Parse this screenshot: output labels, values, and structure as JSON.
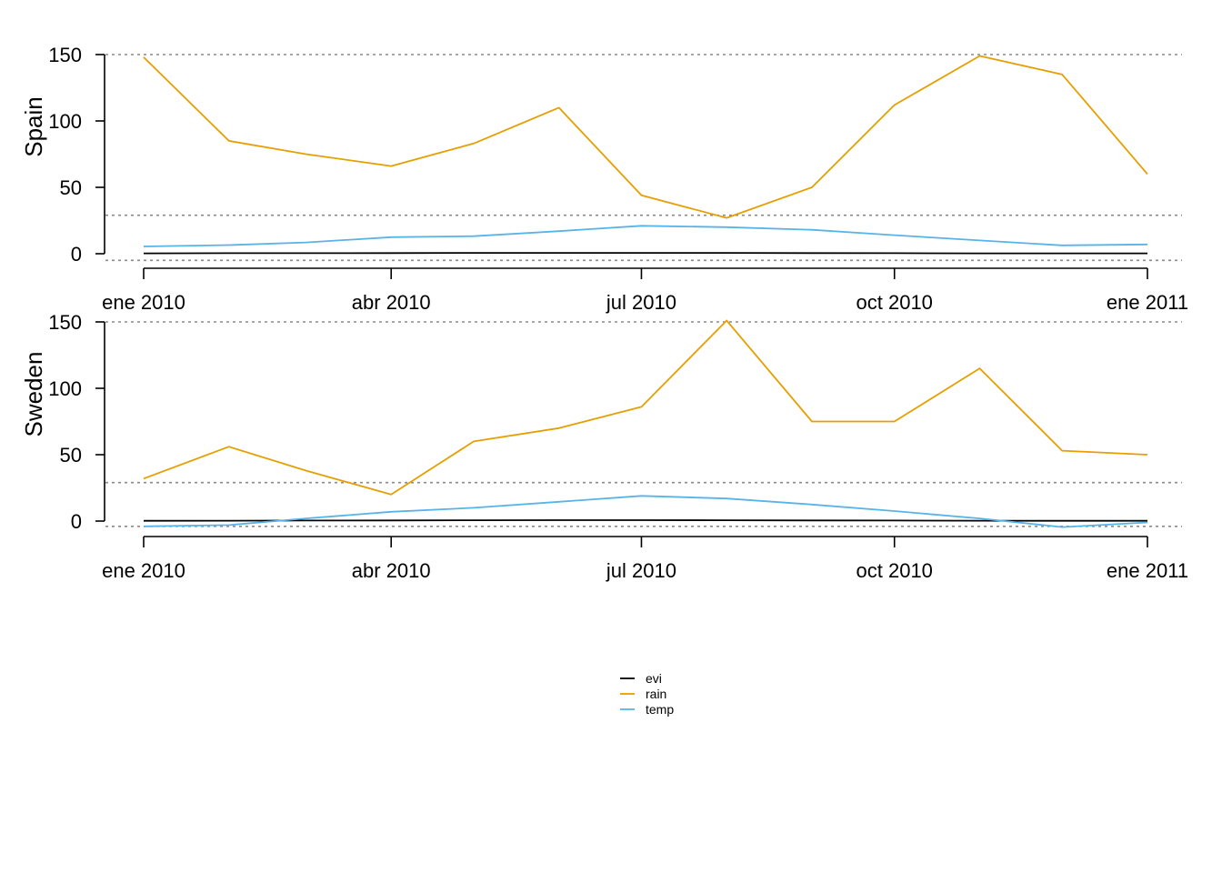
{
  "chart_data": [
    {
      "type": "line",
      "panel": "Spain",
      "ylabel": "Spain",
      "ylim": [
        0,
        150
      ],
      "yticks": [
        0,
        50,
        100,
        150
      ],
      "xlim": [
        "2010-01-01",
        "2011-01-01"
      ],
      "x": [
        "2010-01-01",
        "2010-02-01",
        "2010-03-01",
        "2010-04-01",
        "2010-05-01",
        "2010-06-01",
        "2010-07-01",
        "2010-08-01",
        "2010-09-01",
        "2010-10-01",
        "2010-11-01",
        "2010-12-01",
        "2011-01-01"
      ],
      "xticks": [
        {
          "date": "2010-01-01",
          "label": "ene 2010"
        },
        {
          "date": "2010-04-01",
          "label": "abr 2010"
        },
        {
          "date": "2010-07-01",
          "label": "jul 2010"
        },
        {
          "date": "2010-10-01",
          "label": "oct 2010"
        },
        {
          "date": "2011-01-01",
          "label": "ene 2011"
        }
      ],
      "reference_lines": [
        150,
        29,
        -5
      ],
      "series": [
        {
          "name": "evi",
          "color": "#000000",
          "values": [
            0.3,
            0.4,
            0.4,
            0.5,
            0.6,
            0.6,
            0.6,
            0.6,
            0.5,
            0.4,
            0.3,
            0.3,
            0.3
          ]
        },
        {
          "name": "rain",
          "color": "#E69F00",
          "values": [
            148,
            85,
            75,
            66,
            83,
            110,
            44,
            27,
            50,
            112,
            149,
            135,
            60
          ]
        },
        {
          "name": "temp",
          "color": "#56B4E9",
          "values": [
            5.5,
            6.5,
            8.5,
            12.5,
            13.2,
            17,
            21,
            20,
            18,
            14,
            10,
            6.3,
            7
          ]
        }
      ]
    },
    {
      "type": "line",
      "panel": "Sweden",
      "ylabel": "Sweden",
      "ylim": [
        0,
        150
      ],
      "yticks": [
        0,
        50,
        100,
        150
      ],
      "xlim": [
        "2010-01-01",
        "2011-01-01"
      ],
      "x": [
        "2010-01-01",
        "2010-02-01",
        "2010-03-01",
        "2010-04-01",
        "2010-05-01",
        "2010-06-01",
        "2010-07-01",
        "2010-08-01",
        "2010-09-01",
        "2010-10-01",
        "2010-11-01",
        "2010-12-01",
        "2011-01-01"
      ],
      "xticks": [
        {
          "date": "2010-01-01",
          "label": "ene 2010"
        },
        {
          "date": "2010-04-01",
          "label": "abr 2010"
        },
        {
          "date": "2010-07-01",
          "label": "jul 2010"
        },
        {
          "date": "2010-10-01",
          "label": "oct 2010"
        },
        {
          "date": "2011-01-01",
          "label": "ene 2011"
        }
      ],
      "reference_lines": [
        150,
        29,
        -4
      ],
      "series": [
        {
          "name": "evi",
          "color": "#000000",
          "values": [
            0.2,
            0.3,
            0.4,
            0.5,
            0.6,
            0.7,
            0.7,
            0.6,
            0.5,
            0.4,
            0.3,
            0.2,
            0.2
          ]
        },
        {
          "name": "rain",
          "color": "#E69F00",
          "values": [
            32,
            56,
            38,
            20,
            60,
            70,
            86,
            151,
            75,
            75,
            115,
            53,
            50
          ]
        },
        {
          "name": "temp",
          "color": "#56B4E9",
          "values": [
            -4,
            -3,
            2,
            7,
            10,
            14.5,
            19,
            17,
            12.5,
            7.5,
            2,
            -4.5,
            -1
          ]
        }
      ]
    }
  ],
  "legend": {
    "placement": "bottom-center",
    "entries": [
      {
        "label": "evi",
        "color": "#000000"
      },
      {
        "label": "rain",
        "color": "#E69F00"
      },
      {
        "label": "temp",
        "color": "#56B4E9"
      }
    ]
  }
}
